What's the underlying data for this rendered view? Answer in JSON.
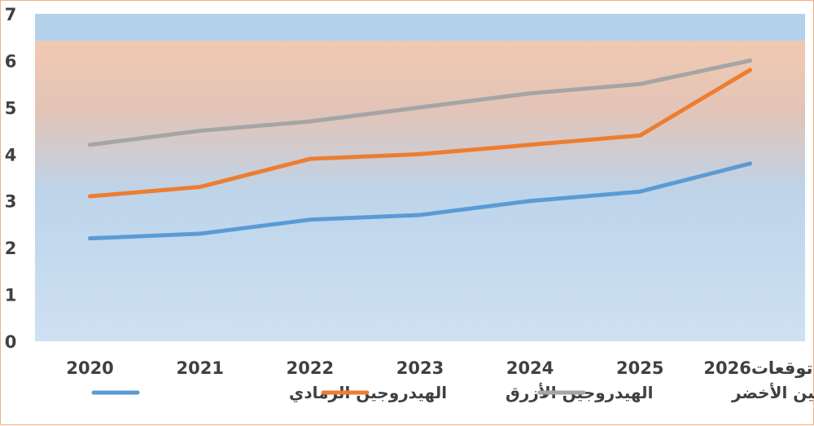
{
  "chart_data": {
    "type": "line",
    "categories": [
      "2020",
      "2021",
      "2022",
      "2023",
      "2024",
      "2025",
      "توقعات2026"
    ],
    "series": [
      {
        "name": "الهيدروجين الرمادي",
        "color": "#5b9bd5",
        "values": [
          2.2,
          2.3,
          2.6,
          2.7,
          3.0,
          3.2,
          3.8
        ]
      },
      {
        "name": "الهيدروجين الأزرق",
        "color": "#ed7d31",
        "values": [
          3.1,
          3.3,
          3.9,
          4.0,
          4.2,
          4.4,
          5.8
        ]
      },
      {
        "name": "الهيدروجين الأخضر",
        "color": "#a5a5a5",
        "values": [
          4.2,
          4.5,
          4.7,
          5.0,
          5.3,
          5.5,
          6.0
        ]
      }
    ],
    "yticks": [
      "0",
      "1",
      "2",
      "3",
      "4",
      "5",
      "6",
      "7"
    ],
    "ylim": [
      0,
      7
    ],
    "title": "",
    "xlabel": "",
    "ylabel": "",
    "legend_position": "bottom",
    "grid": false
  }
}
